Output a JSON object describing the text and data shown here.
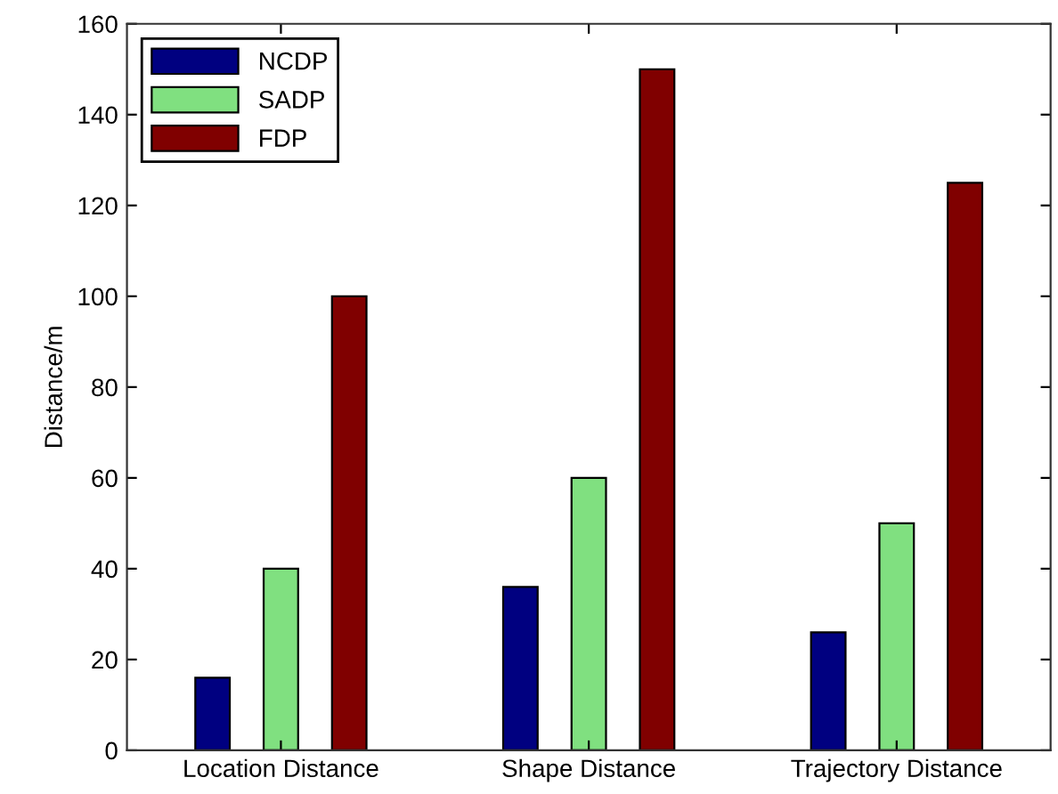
{
  "chart_data": {
    "type": "bar",
    "categories": [
      "Location Distance",
      "Shape Distance",
      "Trajectory Distance"
    ],
    "series": [
      {
        "name": "NCDP",
        "color": "#000080",
        "values": [
          16,
          36,
          26
        ]
      },
      {
        "name": "SADP",
        "color": "#80e080",
        "values": [
          40,
          60,
          50
        ]
      },
      {
        "name": "FDP",
        "color": "#800000",
        "values": [
          100,
          150,
          125
        ]
      }
    ],
    "ylabel": "Distance/m",
    "ylim": [
      0,
      160
    ],
    "yticks": [
      0,
      20,
      40,
      60,
      80,
      100,
      120,
      140,
      160
    ],
    "grid": false,
    "legend": "top left"
  }
}
